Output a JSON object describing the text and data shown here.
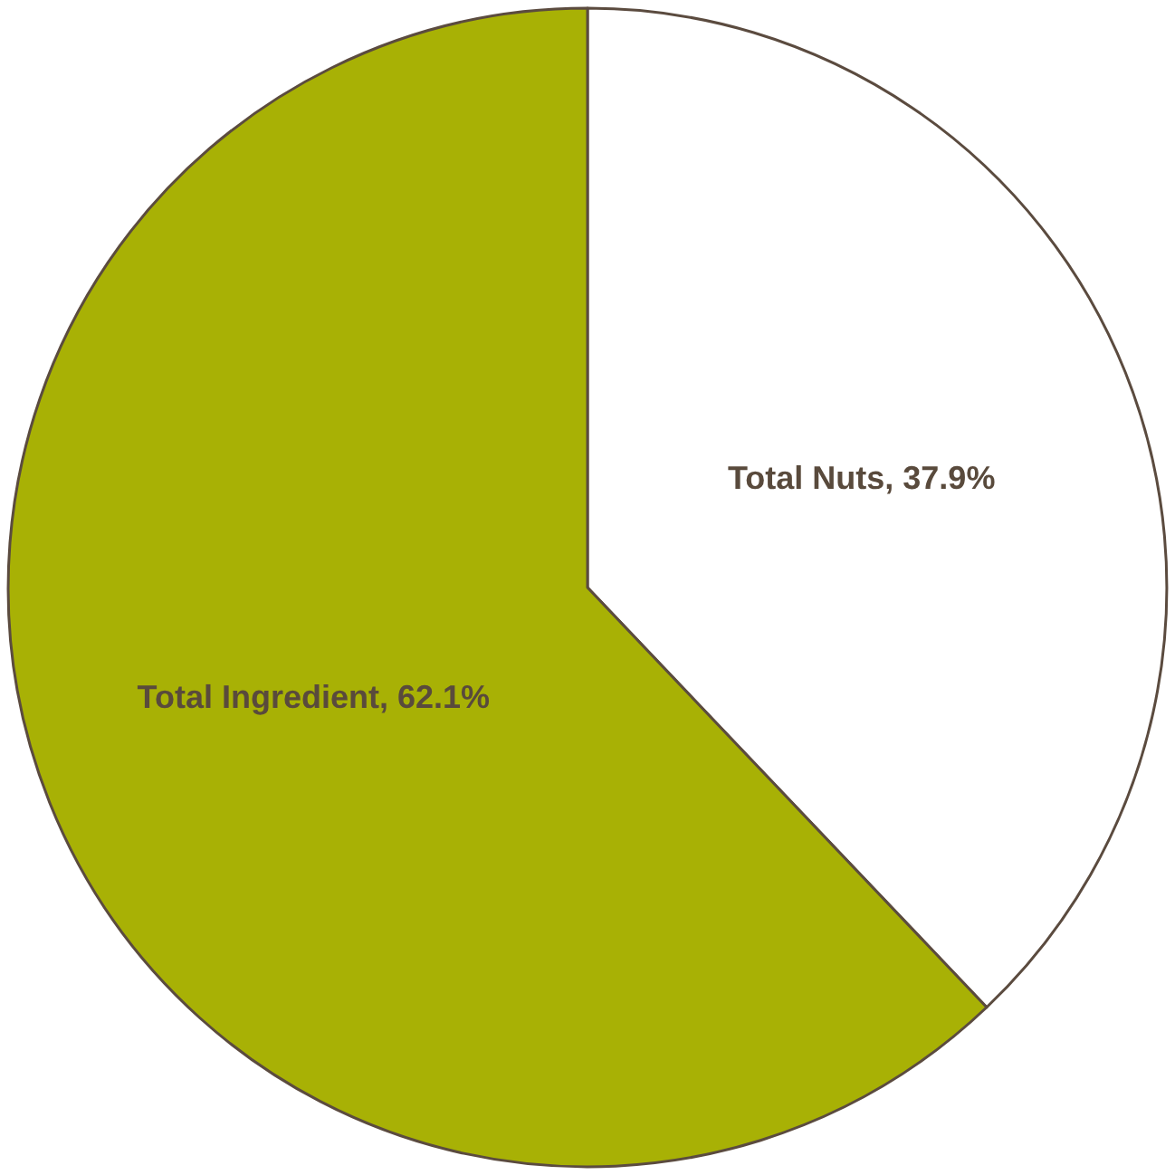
{
  "chart_data": {
    "type": "pie",
    "categories": [
      "Total Nuts",
      "Total Ingredient"
    ],
    "values": [
      37.9,
      62.1
    ],
    "colors": [
      "#ffffff",
      "#a8b105"
    ],
    "value_labels": [
      "37.9%",
      "62.1%"
    ],
    "legend": false
  }
}
